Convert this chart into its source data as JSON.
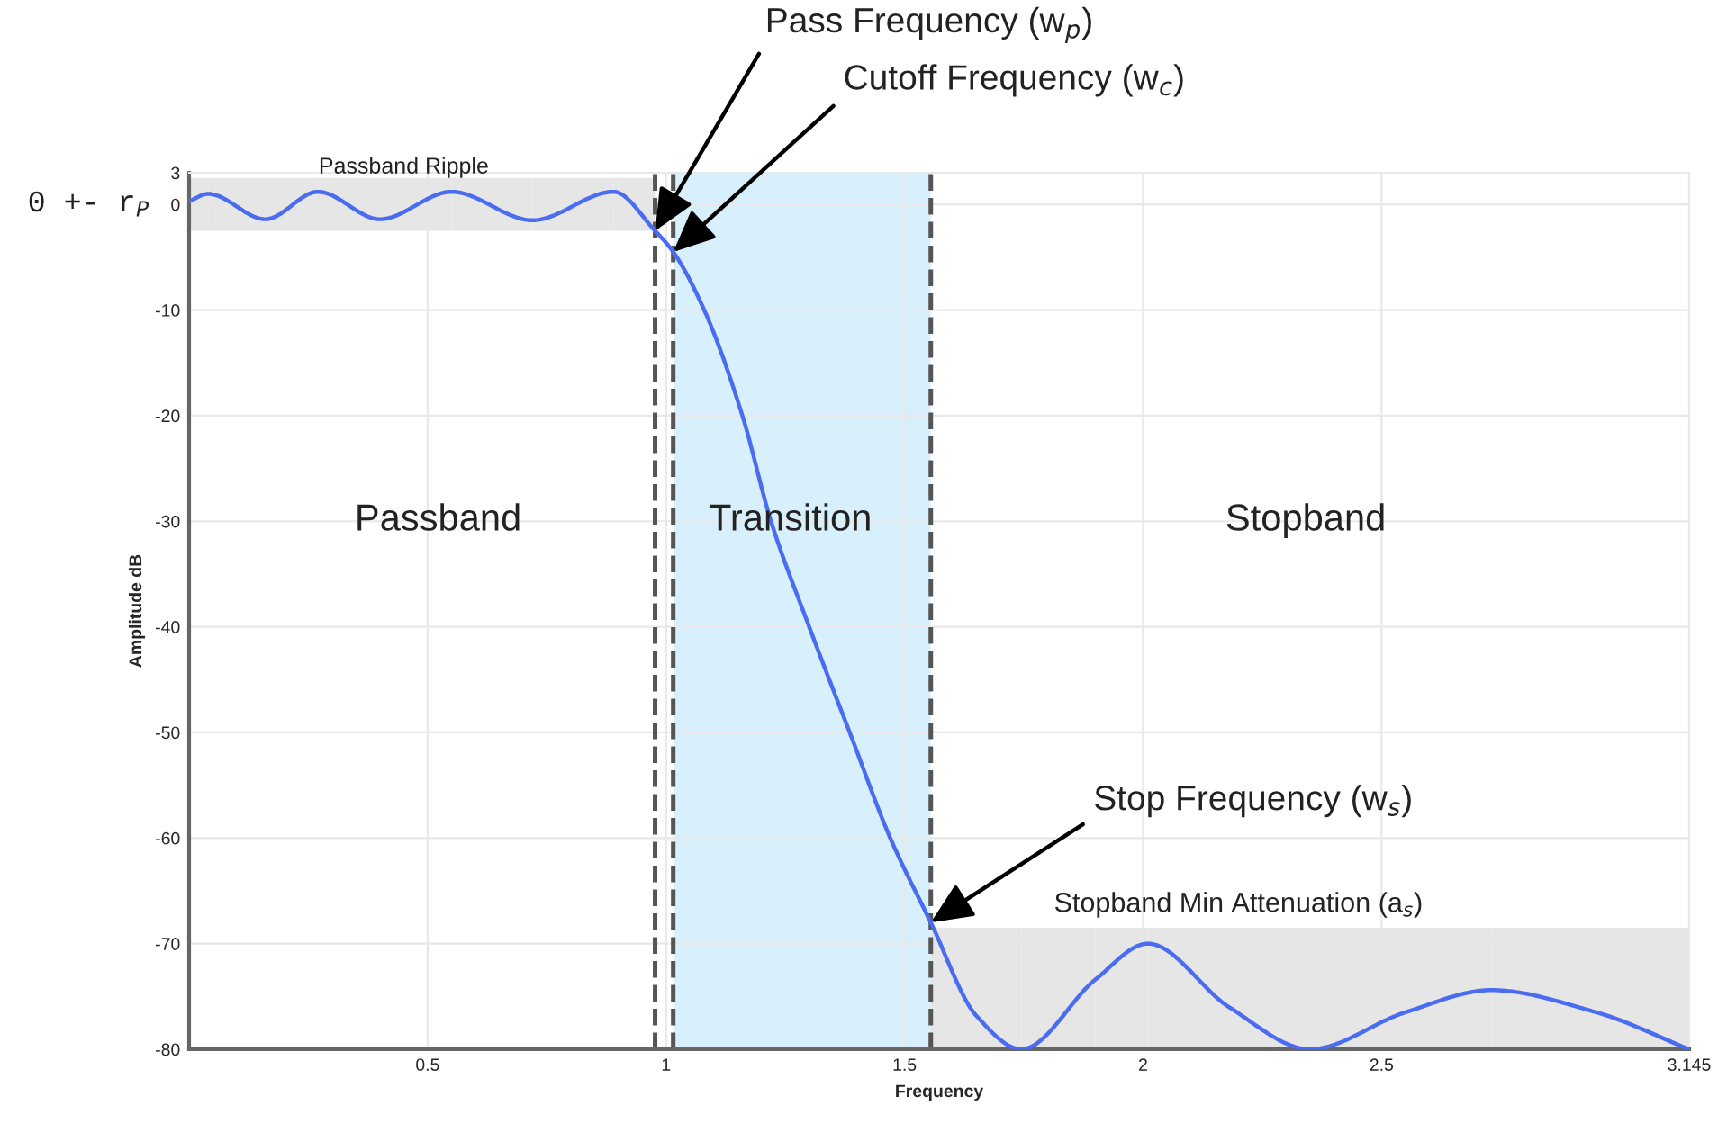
{
  "chart_data": {
    "type": "line",
    "xlabel": "Frequency",
    "ylabel": "Amplitude dB",
    "xlim": [
      0,
      3.145
    ],
    "ylim": [
      -80,
      3
    ],
    "xticks": [
      0.5,
      1,
      1.5,
      2,
      2.5,
      3.145
    ],
    "yticks": [
      3,
      0,
      {
        "value": -10,
        "label": "-10"
      },
      {
        "value": -20,
        "label": "-20"
      },
      {
        "value": -30,
        "label": "-30"
      },
      {
        "value": -40,
        "label": "-40"
      },
      {
        "value": -50,
        "label": "-50"
      },
      {
        "value": -60,
        "label": "-60"
      },
      {
        "value": -70,
        "label": "-70"
      },
      {
        "value": -80,
        "label": "-80"
      }
    ],
    "grid": true,
    "marker": "none",
    "line_style": "solid",
    "series": [
      {
        "color": "#4a6cf0",
        "lower": [
          -2.5,
          -2.5,
          -2.5,
          -2.5,
          -2.5,
          -2.5,
          -2.5,
          -2.5,
          -2.5,
          null,
          null,
          null,
          null,
          null,
          null,
          null,
          -80,
          -80,
          -80,
          -80,
          -80,
          -80,
          -80,
          -80,
          -80,
          -80,
          -80
        ],
        "upper": [
          2.5,
          2.5,
          2.5,
          2.5,
          2.5,
          2.5,
          2.5,
          2.5,
          2.5,
          null,
          null,
          null,
          null,
          null,
          null,
          null,
          -68.5,
          -68.5,
          -68.5,
          -68.5,
          -68.5,
          -68.5,
          -68.5,
          -68.5,
          -68.5,
          -68.5,
          -68.5
        ],
        "x": [
          0,
          0.04,
          0.16,
          0.27,
          0.4,
          0.55,
          0.72,
          0.89,
          0.977,
          1.015,
          1.08,
          1.16,
          1.22,
          1.3,
          1.385,
          1.47,
          1.555,
          1.65,
          1.745,
          1.9,
          2.01,
          2.18,
          2.35,
          2.55,
          2.73,
          2.95,
          3.145
        ],
        "values": [
          0.3,
          1,
          -1.4,
          1.2,
          -1.4,
          1.2,
          -1.5,
          1.2,
          -2.5,
          -4.5,
          -10,
          -20,
          -30,
          -40,
          -50,
          -60,
          -68,
          -76.8,
          -80,
          -73.4,
          -70,
          -76,
          -80,
          -76.5,
          -74.4,
          -76.5,
          -80
        ]
      }
    ],
    "bands": [
      {
        "axis": "x",
        "from": 1.015,
        "to": 1.555,
        "color": "#d8effc"
      }
    ],
    "ref_lines": [
      {
        "axis": "x",
        "value": 0.977,
        "color": "#555555",
        "line_style": "dashed"
      },
      {
        "axis": "x",
        "value": 1.015,
        "color": "#555555",
        "line_style": "dashed"
      },
      {
        "axis": "x",
        "value": 1.555,
        "color": "#555555",
        "line_style": "dashed"
      }
    ],
    "annotations": [
      {
        "text": "Pass Frequency (w$_{p}$)",
        "x": 0.977,
        "y": -2.5
      },
      {
        "text": "Cutoff Frequency (w$_{c}$)",
        "x": 1.015,
        "y": -4.5
      },
      {
        "text": "Stop Frequency (w$_{s}$)",
        "x": 1.555,
        "y": -68
      },
      {
        "text": "Stopband Min Attenuation (a$_{s}$)",
        "x": 2.2,
        "y": -68.5
      },
      {
        "text": "Passband Ripple",
        "x": 0.45,
        "y": 2.5
      },
      "0 +- r$_{P}$",
      "Passband",
      "Transition",
      "Stopband"
    ]
  }
}
